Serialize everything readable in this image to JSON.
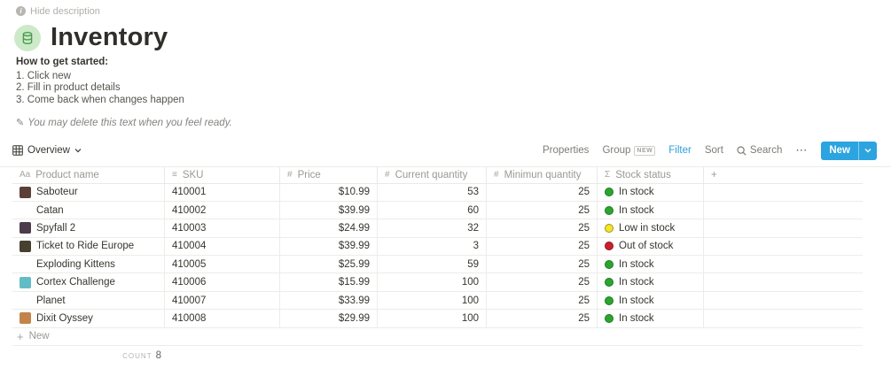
{
  "header": {
    "hide_description": "Hide description",
    "title": "Inventory",
    "info_icon_glyph": "i"
  },
  "description": {
    "heading": "How to get started:",
    "steps": [
      "1. Click new",
      "2. Fill in product details",
      "3. Come back when changes happen"
    ],
    "note_icon_glyph": "✎",
    "note": "You may delete this text when you feel ready."
  },
  "toolbar": {
    "view_label": "Overview",
    "properties_label": "Properties",
    "group_label": "Group",
    "group_badge": "NEW",
    "filter_label": "Filter",
    "sort_label": "Sort",
    "search_label": "Search",
    "more_icon_glyph": "⋯",
    "new_button_label": "New"
  },
  "table": {
    "columns": [
      {
        "icon": "Aa",
        "icon_name": "title-property-icon",
        "label": "Product name"
      },
      {
        "icon": "≡",
        "icon_name": "text-property-icon",
        "label": "SKU"
      },
      {
        "icon": "#",
        "icon_name": "number-property-icon",
        "label": "Price"
      },
      {
        "icon": "#",
        "icon_name": "number-property-icon",
        "label": "Current quantity"
      },
      {
        "icon": "#",
        "icon_name": "number-property-icon",
        "label": "Minimun quantity"
      },
      {
        "icon": "Σ",
        "icon_name": "formula-property-icon",
        "label": "Stock status"
      }
    ],
    "add_column_glyph": "+",
    "rows": [
      {
        "name": "Saboteur",
        "thumb": "#5a4036",
        "sku": "410001",
        "price": "$10.99",
        "current": "53",
        "minimum": "25",
        "status": "In stock",
        "status_color": "green"
      },
      {
        "name": "Catan",
        "thumb": null,
        "sku": "410002",
        "price": "$39.99",
        "current": "60",
        "minimum": "25",
        "status": "In stock",
        "status_color": "green"
      },
      {
        "name": "Spyfall 2",
        "thumb": "#4d3c4a",
        "sku": "410003",
        "price": "$24.99",
        "current": "32",
        "minimum": "25",
        "status": "Low in stock",
        "status_color": "yellow"
      },
      {
        "name": "Ticket to Ride Europe",
        "thumb": "#48402f",
        "sku": "410004",
        "price": "$39.99",
        "current": "3",
        "minimum": "25",
        "status": "Out of stock",
        "status_color": "red"
      },
      {
        "name": "Exploding Kittens",
        "thumb": null,
        "sku": "410005",
        "price": "$25.99",
        "current": "59",
        "minimum": "25",
        "status": "In stock",
        "status_color": "green"
      },
      {
        "name": "Cortex Challenge",
        "thumb": "#62bcc6",
        "sku": "410006",
        "price": "$15.99",
        "current": "100",
        "minimum": "25",
        "status": "In stock",
        "status_color": "green"
      },
      {
        "name": "Planet",
        "thumb": null,
        "sku": "410007",
        "price": "$33.99",
        "current": "100",
        "minimum": "25",
        "status": "In stock",
        "status_color": "green"
      },
      {
        "name": "Dixit Oyssey",
        "thumb": "#c28448",
        "sku": "410008",
        "price": "$29.99",
        "current": "100",
        "minimum": "25",
        "status": "In stock",
        "status_color": "green"
      }
    ],
    "new_row_label": "New",
    "new_row_plus_glyph": "+",
    "count_label": "COUNT",
    "count_value": "8"
  },
  "colors": {
    "accent_blue": "#2ca4e0",
    "green": {
      "fill": "#2aa62f",
      "stroke": "#1b7a22"
    },
    "yellow": {
      "fill": "#f6e427",
      "stroke": "#a0921b"
    },
    "red": {
      "fill": "#cc1f2f",
      "stroke": "#8f1521"
    }
  }
}
